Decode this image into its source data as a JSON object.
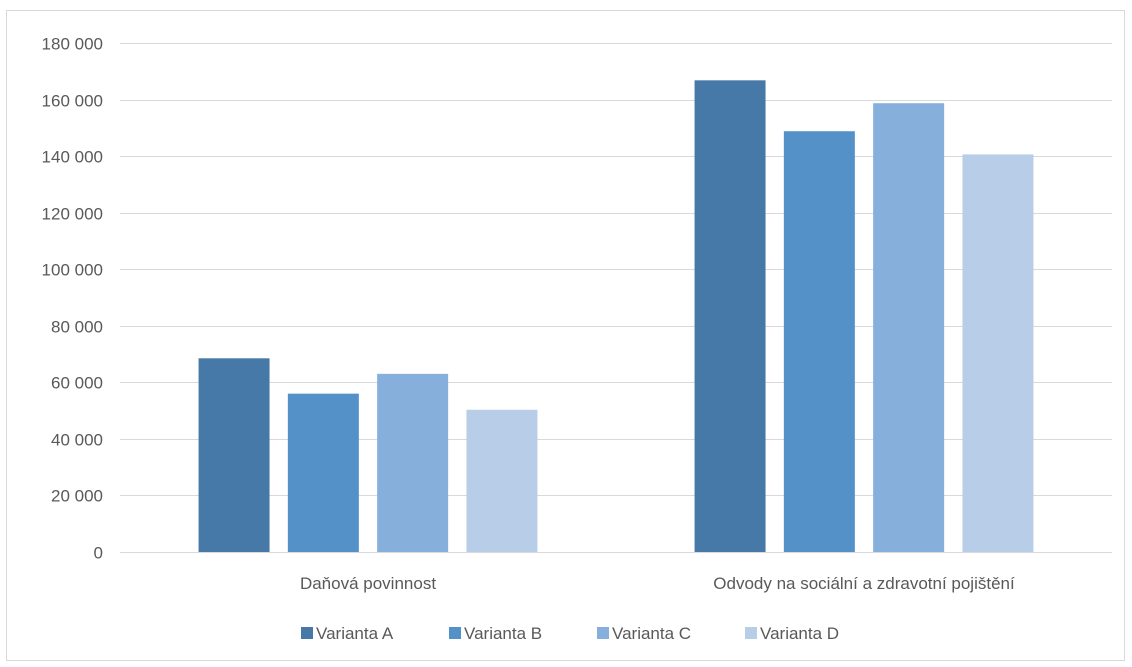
{
  "chart_data": {
    "type": "bar",
    "categories": [
      "Daňová povinnost",
      "Odvody na sociální a zdravotní pojištění"
    ],
    "series": [
      {
        "name": "Varianta A",
        "values": [
          68500,
          166800
        ],
        "color": "#4779a8"
      },
      {
        "name": "Varianta B",
        "values": [
          56000,
          148800
        ],
        "color": "#5591c9"
      },
      {
        "name": "Varianta C",
        "values": [
          63000,
          158700
        ],
        "color": "#86afdc"
      },
      {
        "name": "Varianta D",
        "values": [
          50300,
          140600
        ],
        "color": "#b8cde8"
      }
    ],
    "ylim": [
      0,
      180000
    ],
    "yticks": [
      0,
      20000,
      40000,
      60000,
      80000,
      100000,
      120000,
      140000,
      160000,
      180000
    ],
    "ytick_labels": [
      "0",
      "20 000",
      "40 000",
      "60 000",
      "80 000",
      "100 000",
      "120 000",
      "140 000",
      "160 000",
      "180 000"
    ],
    "grid": true,
    "legend_position": "bottom",
    "gridline_color": "#d9d9d9"
  }
}
